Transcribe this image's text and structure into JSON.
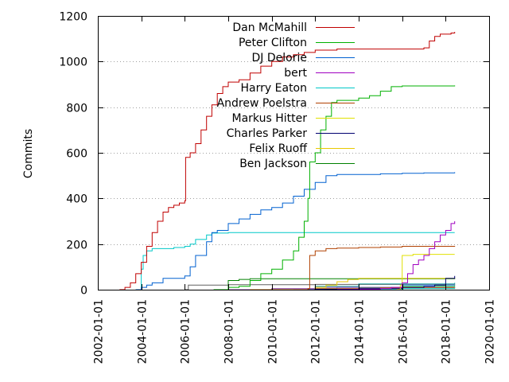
{
  "chart_data": {
    "type": "line",
    "title": "",
    "xlabel": "",
    "ylabel": "Commits",
    "x_type": "date",
    "xlim": [
      "2002-01-01",
      "2020-01-01"
    ],
    "ylim": [
      0,
      1200
    ],
    "x_ticks": [
      "2002-01-01",
      "2004-01-01",
      "2006-01-01",
      "2008-01-01",
      "2010-01-01",
      "2012-01-01",
      "2014-01-01",
      "2016-01-01",
      "2018-01-01",
      "2020-01-01"
    ],
    "y_ticks": [
      0,
      200,
      400,
      600,
      800,
      1000,
      1200
    ],
    "grid": "horizontal dotted at 200, 400, 600, 800",
    "legend_position": "top-right",
    "series": [
      {
        "name": "Dan McMahill",
        "color": "#c00000",
        "points": [
          [
            "2003-01-01",
            0
          ],
          [
            "2003-04-01",
            10
          ],
          [
            "2003-07-01",
            30
          ],
          [
            "2003-10-01",
            70
          ],
          [
            "2004-01-01",
            120
          ],
          [
            "2004-04-01",
            190
          ],
          [
            "2004-07-01",
            250
          ],
          [
            "2004-10-01",
            300
          ],
          [
            "2005-01-01",
            340
          ],
          [
            "2005-04-01",
            360
          ],
          [
            "2005-07-01",
            370
          ],
          [
            "2005-10-01",
            380
          ],
          [
            "2006-01-01",
            390
          ],
          [
            "2006-01-15",
            580
          ],
          [
            "2006-04-01",
            600
          ],
          [
            "2006-07-01",
            640
          ],
          [
            "2006-10-01",
            700
          ],
          [
            "2007-01-01",
            760
          ],
          [
            "2007-04-01",
            810
          ],
          [
            "2007-07-01",
            860
          ],
          [
            "2007-10-01",
            890
          ],
          [
            "2008-01-01",
            910
          ],
          [
            "2008-07-01",
            920
          ],
          [
            "2009-01-01",
            950
          ],
          [
            "2009-07-01",
            980
          ],
          [
            "2010-01-01",
            1000
          ],
          [
            "2010-07-01",
            1020
          ],
          [
            "2011-01-01",
            1030
          ],
          [
            "2011-07-01",
            1040
          ],
          [
            "2012-01-01",
            1050
          ],
          [
            "2013-01-01",
            1055
          ],
          [
            "2014-01-01",
            1055
          ],
          [
            "2015-01-01",
            1055
          ],
          [
            "2016-01-01",
            1055
          ],
          [
            "2017-01-01",
            1060
          ],
          [
            "2017-04-01",
            1090
          ],
          [
            "2017-07-01",
            1110
          ],
          [
            "2017-10-01",
            1120
          ],
          [
            "2018-04-01",
            1125
          ],
          [
            "2018-06-01",
            1130
          ]
        ]
      },
      {
        "name": "Peter Clifton",
        "color": "#00b000",
        "points": [
          [
            "2007-05-01",
            0
          ],
          [
            "2008-01-01",
            10
          ],
          [
            "2008-07-01",
            15
          ],
          [
            "2009-01-01",
            40
          ],
          [
            "2009-07-01",
            70
          ],
          [
            "2010-01-01",
            90
          ],
          [
            "2010-07-01",
            130
          ],
          [
            "2011-01-01",
            170
          ],
          [
            "2011-04-01",
            230
          ],
          [
            "2011-07-01",
            300
          ],
          [
            "2011-09-01",
            400
          ],
          [
            "2011-10-01",
            560
          ],
          [
            "2012-01-01",
            600
          ],
          [
            "2012-04-01",
            700
          ],
          [
            "2012-07-01",
            760
          ],
          [
            "2012-10-01",
            820
          ],
          [
            "2013-01-01",
            830
          ],
          [
            "2014-01-01",
            840
          ],
          [
            "2014-07-01",
            850
          ],
          [
            "2015-01-01",
            870
          ],
          [
            "2015-07-01",
            890
          ],
          [
            "2016-01-01",
            893
          ],
          [
            "2018-06-01",
            895
          ]
        ]
      },
      {
        "name": "DJ Delorie",
        "color": "#0060d0",
        "points": [
          [
            "2003-10-01",
            0
          ],
          [
            "2004-01-01",
            10
          ],
          [
            "2004-04-01",
            20
          ],
          [
            "2004-07-01",
            30
          ],
          [
            "2005-01-01",
            50
          ],
          [
            "2006-01-01",
            60
          ],
          [
            "2006-04-01",
            100
          ],
          [
            "2006-07-01",
            150
          ],
          [
            "2007-01-01",
            210
          ],
          [
            "2007-04-01",
            250
          ],
          [
            "2007-07-01",
            260
          ],
          [
            "2008-01-01",
            290
          ],
          [
            "2008-07-01",
            310
          ],
          [
            "2009-01-01",
            330
          ],
          [
            "2009-07-01",
            350
          ],
          [
            "2010-01-01",
            360
          ],
          [
            "2010-07-01",
            380
          ],
          [
            "2011-01-01",
            410
          ],
          [
            "2011-07-01",
            440
          ],
          [
            "2012-01-01",
            470
          ],
          [
            "2012-07-01",
            500
          ],
          [
            "2013-01-01",
            505
          ],
          [
            "2014-01-01",
            505
          ],
          [
            "2015-01-01",
            508
          ],
          [
            "2016-01-01",
            510
          ],
          [
            "2017-01-01",
            512
          ],
          [
            "2018-06-01",
            515
          ]
        ]
      },
      {
        "name": "bert",
        "color": "#a000c0",
        "points": [
          [
            "2013-01-01",
            0
          ],
          [
            "2014-01-01",
            2
          ],
          [
            "2015-01-01",
            5
          ],
          [
            "2015-07-01",
            10
          ],
          [
            "2016-01-01",
            30
          ],
          [
            "2016-04-01",
            70
          ],
          [
            "2016-07-01",
            110
          ],
          [
            "2016-10-01",
            130
          ],
          [
            "2017-01-01",
            150
          ],
          [
            "2017-04-01",
            180
          ],
          [
            "2017-07-01",
            210
          ],
          [
            "2017-10-01",
            240
          ],
          [
            "2018-01-01",
            260
          ],
          [
            "2018-04-01",
            290
          ],
          [
            "2018-06-01",
            300
          ]
        ]
      },
      {
        "name": "Harry Eaton",
        "color": "#00c8c8",
        "points": [
          [
            "2003-10-01",
            0
          ],
          [
            "2004-01-01",
            90
          ],
          [
            "2004-02-01",
            150
          ],
          [
            "2004-04-01",
            170
          ],
          [
            "2004-07-01",
            180
          ],
          [
            "2005-01-01",
            180
          ],
          [
            "2005-07-01",
            185
          ],
          [
            "2006-01-01",
            190
          ],
          [
            "2006-04-01",
            200
          ],
          [
            "2006-07-01",
            220
          ],
          [
            "2007-01-01",
            240
          ],
          [
            "2007-04-01",
            248
          ],
          [
            "2008-01-01",
            250
          ],
          [
            "2012-01-01",
            250
          ],
          [
            "2018-06-01",
            250
          ]
        ]
      },
      {
        "name": "Andrew Poelstra",
        "color": "#b04000",
        "points": [
          [
            "2011-01-01",
            0
          ],
          [
            "2011-09-01",
            5
          ],
          [
            "2011-10-01",
            150
          ],
          [
            "2012-01-01",
            170
          ],
          [
            "2012-07-01",
            180
          ],
          [
            "2013-01-01",
            182
          ],
          [
            "2014-01-01",
            185
          ],
          [
            "2015-01-01",
            187
          ],
          [
            "2016-01-01",
            190
          ],
          [
            "2018-06-01",
            192
          ]
        ]
      },
      {
        "name": "Markus Hitter",
        "color": "#e0e000",
        "points": [
          [
            "2015-10-01",
            0
          ],
          [
            "2015-12-01",
            20
          ],
          [
            "2016-01-01",
            150
          ],
          [
            "2016-07-01",
            155
          ],
          [
            "2018-06-01",
            155
          ]
        ]
      },
      {
        "name": "Charles Parker",
        "color": "#000070",
        "points": [
          [
            "2011-07-01",
            0
          ],
          [
            "2012-01-01",
            2
          ],
          [
            "2014-01-01",
            5
          ],
          [
            "2016-01-01",
            10
          ],
          [
            "2017-01-01",
            15
          ],
          [
            "2017-07-01",
            20
          ],
          [
            "2018-01-01",
            50
          ],
          [
            "2018-06-01",
            60
          ]
        ]
      },
      {
        "name": "Felix Ruoff",
        "color": "#e8c800",
        "points": [
          [
            "2011-07-01",
            0
          ],
          [
            "2012-01-01",
            10
          ],
          [
            "2012-07-01",
            20
          ],
          [
            "2013-01-01",
            35
          ],
          [
            "2013-07-01",
            45
          ],
          [
            "2014-01-01",
            50
          ],
          [
            "2018-06-01",
            52
          ]
        ]
      },
      {
        "name": "Ben Jackson",
        "color": "#008000",
        "points": [
          [
            "2007-09-01",
            0
          ],
          [
            "2008-01-01",
            40
          ],
          [
            "2008-07-01",
            45
          ],
          [
            "2009-01-01",
            48
          ],
          [
            "2018-06-01",
            50
          ]
        ]
      }
    ],
    "extra_series": [
      {
        "color": "#606060",
        "points": [
          [
            "2006-01-01",
            0
          ],
          [
            "2006-03-01",
            20
          ],
          [
            "2008-01-01",
            22
          ],
          [
            "2012-01-01",
            23
          ],
          [
            "2018-06-01",
            25
          ]
        ]
      },
      {
        "color": "#20a0a0",
        "points": [
          [
            "2011-10-01",
            0
          ],
          [
            "2012-01-01",
            15
          ],
          [
            "2014-01-01",
            25
          ],
          [
            "2018-06-01",
            30
          ]
        ]
      },
      {
        "color": "#4080ff",
        "points": [
          [
            "2012-01-01",
            0
          ],
          [
            "2013-01-01",
            10
          ],
          [
            "2016-01-01",
            20
          ],
          [
            "2018-06-01",
            22
          ]
        ]
      },
      {
        "color": "#20c020",
        "points": [
          [
            "2012-06-01",
            0
          ],
          [
            "2014-01-01",
            8
          ],
          [
            "2016-01-01",
            15
          ],
          [
            "2018-06-01",
            18
          ]
        ]
      },
      {
        "color": "#8040a0",
        "points": [
          [
            "2008-01-01",
            0
          ],
          [
            "2010-01-01",
            5
          ],
          [
            "2012-01-01",
            10
          ],
          [
            "2018-06-01",
            12
          ]
        ]
      },
      {
        "color": "#c06000",
        "points": [
          [
            "2009-01-01",
            0
          ],
          [
            "2012-01-01",
            5
          ],
          [
            "2015-01-01",
            8
          ],
          [
            "2018-06-01",
            10
          ]
        ]
      },
      {
        "color": "#00d0d0",
        "points": [
          [
            "2013-06-01",
            0
          ],
          [
            "2016-01-01",
            5
          ],
          [
            "2018-06-01",
            8
          ]
        ]
      }
    ]
  }
}
